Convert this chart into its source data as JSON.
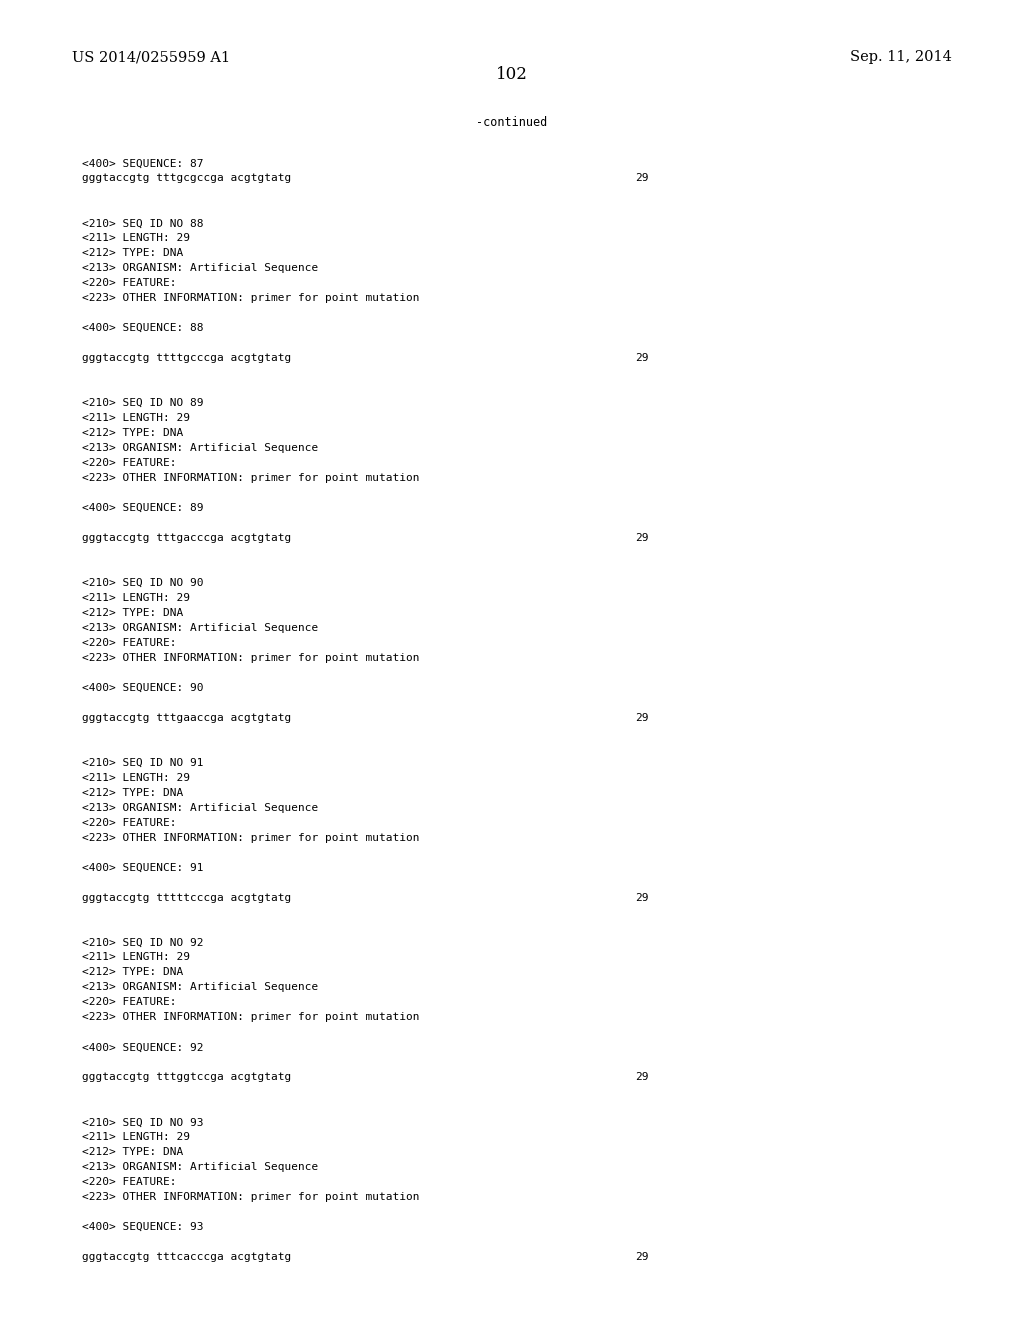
{
  "background_color": "#ffffff",
  "header_left": "US 2014/0255959 A1",
  "header_right": "Sep. 11, 2014",
  "page_number": "102",
  "continued_text": "-continued",
  "header_fontsize": 10.5,
  "page_num_fontsize": 12,
  "mono_fontsize": 8.0,
  "lines": [
    "<400> SEQUENCE: 87",
    "seq:gggtaccgtg tttgcgccga acgtgtatg:29",
    "",
    "",
    "<210> SEQ ID NO 88",
    "<211> LENGTH: 29",
    "<212> TYPE: DNA",
    "<213> ORGANISM: Artificial Sequence",
    "<220> FEATURE:",
    "<223> OTHER INFORMATION: primer for point mutation",
    "",
    "<400> SEQUENCE: 88",
    "",
    "seq:gggtaccgtg ttttgcccga acgtgtatg:29",
    "",
    "",
    "<210> SEQ ID NO 89",
    "<211> LENGTH: 29",
    "<212> TYPE: DNA",
    "<213> ORGANISM: Artificial Sequence",
    "<220> FEATURE:",
    "<223> OTHER INFORMATION: primer for point mutation",
    "",
    "<400> SEQUENCE: 89",
    "",
    "seq:gggtaccgtg tttgacccga acgtgtatg:29",
    "",
    "",
    "<210> SEQ ID NO 90",
    "<211> LENGTH: 29",
    "<212> TYPE: DNA",
    "<213> ORGANISM: Artificial Sequence",
    "<220> FEATURE:",
    "<223> OTHER INFORMATION: primer for point mutation",
    "",
    "<400> SEQUENCE: 90",
    "",
    "seq:gggtaccgtg tttgaaccga acgtgtatg:29",
    "",
    "",
    "<210> SEQ ID NO 91",
    "<211> LENGTH: 29",
    "<212> TYPE: DNA",
    "<213> ORGANISM: Artificial Sequence",
    "<220> FEATURE:",
    "<223> OTHER INFORMATION: primer for point mutation",
    "",
    "<400> SEQUENCE: 91",
    "",
    "seq:gggtaccgtg tttttcccga acgtgtatg:29",
    "",
    "",
    "<210> SEQ ID NO 92",
    "<211> LENGTH: 29",
    "<212> TYPE: DNA",
    "<213> ORGANISM: Artificial Sequence",
    "<220> FEATURE:",
    "<223> OTHER INFORMATION: primer for point mutation",
    "",
    "<400> SEQUENCE: 92",
    "",
    "seq:gggtaccgtg tttggtccga acgtgtatg:29",
    "",
    "",
    "<210> SEQ ID NO 93",
    "<211> LENGTH: 29",
    "<212> TYPE: DNA",
    "<213> ORGANISM: Artificial Sequence",
    "<220> FEATURE:",
    "<223> OTHER INFORMATION: primer for point mutation",
    "",
    "<400> SEQUENCE: 93",
    "",
    "seq:gggtaccgtg tttcacccga acgtgtatg:29"
  ]
}
